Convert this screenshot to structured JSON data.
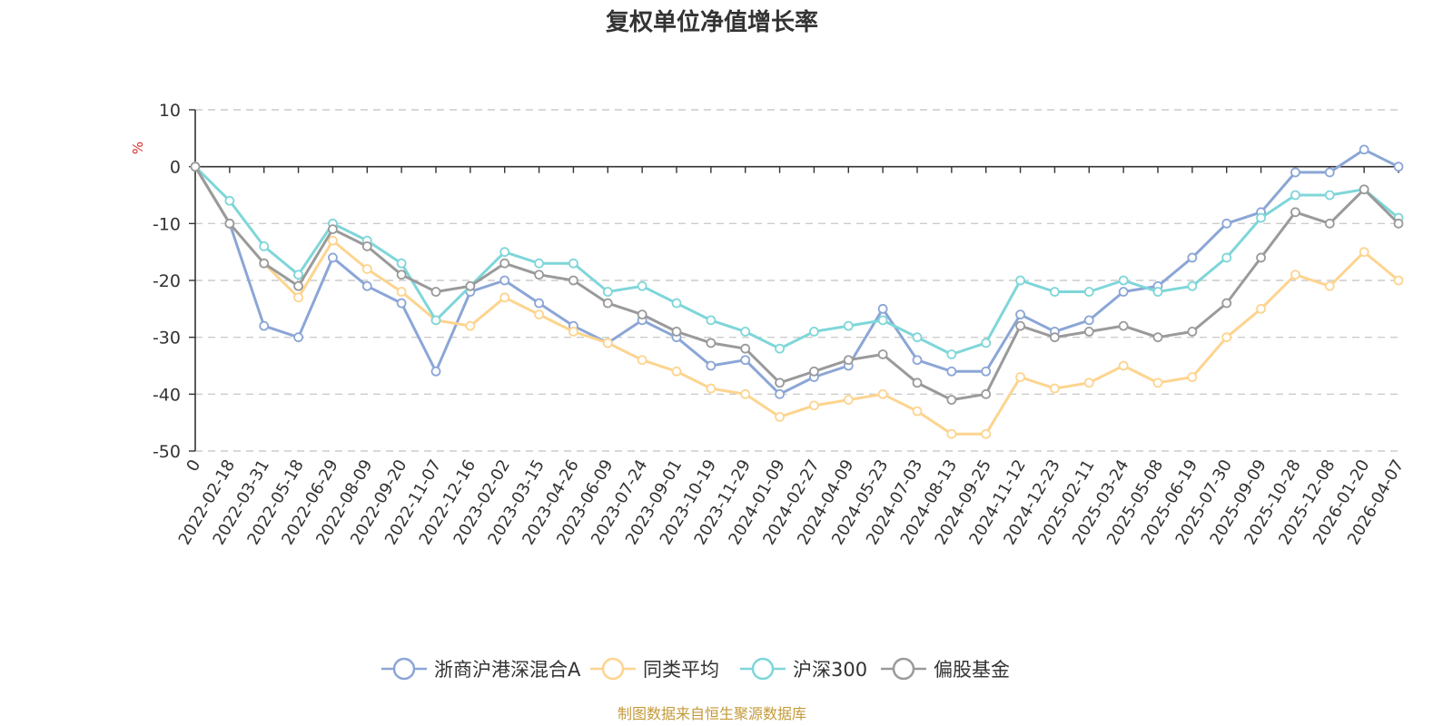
{
  "chart_data": {
    "type": "line",
    "title": "复权单位净值增长率",
    "ylabel": "%",
    "ylim": [
      -50,
      10
    ],
    "yticks": [
      10,
      0,
      -10,
      -20,
      -30,
      -40,
      -50
    ],
    "grid": true,
    "legend_position": "bottom",
    "categories": [
      "0",
      "2022-02-18",
      "2022-03-31",
      "2022-05-18",
      "2022-06-29",
      "2022-08-09",
      "2022-09-20",
      "2022-11-07",
      "2022-12-16",
      "2023-02-02",
      "2023-03-15",
      "2023-04-26",
      "2023-06-09",
      "2023-07-24",
      "2023-09-01",
      "2023-10-19",
      "2023-11-29",
      "2024-01-09",
      "2024-02-27",
      "2024-04-09",
      "2024-05-23",
      "2024-07-03",
      "2024-08-13",
      "2024-09-25",
      "2024-11-12",
      "2024-12-23",
      "2025-02-11",
      "2025-03-24",
      "2025-05-08",
      "2025-06-19",
      "2025-07-30",
      "2025-09-09",
      "2025-10-28",
      "2025-12-08",
      "2026-01-20",
      "2026-04-07"
    ],
    "series": [
      {
        "name": "浙商沪港深混合A",
        "color": "#8ba6d6",
        "values": [
          0,
          -10,
          -28,
          -30,
          -16,
          -21,
          -24,
          -36,
          -22,
          -20,
          -24,
          -28,
          -31,
          -27,
          -30,
          -35,
          -34,
          -40,
          -37,
          -35,
          -25,
          -34,
          -36,
          -36,
          -26,
          -29,
          -27,
          -22,
          -21,
          -16,
          -10,
          -8,
          -1,
          -1,
          3,
          0
        ]
      },
      {
        "name": "同类平均",
        "color": "#fdd48f",
        "values": [
          0,
          -10,
          -17,
          -23,
          -13,
          -18,
          -22,
          -27,
          -28,
          -23,
          -26,
          -29,
          -31,
          -34,
          -36,
          -39,
          -40,
          -44,
          -42,
          -41,
          -40,
          -43,
          -47,
          -47,
          -37,
          -39,
          -38,
          -35,
          -38,
          -37,
          -30,
          -25,
          -19,
          -21,
          -15,
          -20
        ]
      },
      {
        "name": "沪深300",
        "color": "#7fd6d9",
        "values": [
          0,
          -6,
          -14,
          -19,
          -10,
          -13,
          -17,
          -27,
          -21,
          -15,
          -17,
          -17,
          -22,
          -21,
          -24,
          -27,
          -29,
          -32,
          -29,
          -28,
          -27,
          -30,
          -33,
          -31,
          -20,
          -22,
          -22,
          -20,
          -22,
          -21,
          -16,
          -9,
          -5,
          -5,
          -4,
          -9
        ]
      },
      {
        "name": "偏股基金",
        "color": "#9a9a9a",
        "values": [
          0,
          -10,
          -17,
          -21,
          -11,
          -14,
          -19,
          -22,
          -21,
          -17,
          -19,
          -20,
          -24,
          -26,
          -29,
          -31,
          -32,
          -38,
          -36,
          -34,
          -33,
          -38,
          -41,
          -40,
          -28,
          -30,
          -29,
          -28,
          -30,
          -29,
          -24,
          -16,
          -8,
          -10,
          -4,
          -10
        ]
      }
    ]
  },
  "source_text": "制图数据来自恒生聚源数据库",
  "colors": {
    "axis": "#333333",
    "grid": "#cccccc",
    "unit": "#d72c2c",
    "source": "#c49a3a"
  }
}
